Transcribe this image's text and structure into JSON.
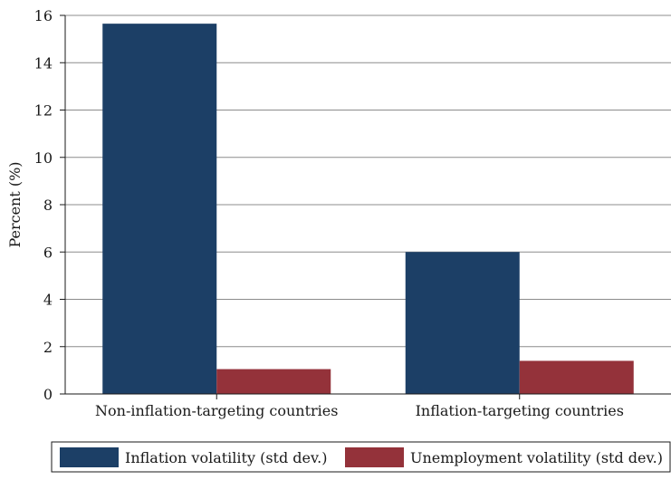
{
  "chart_data": {
    "type": "bar",
    "title": "",
    "xlabel": "",
    "ylabel": "Percent (%)",
    "ylim": [
      0,
      16
    ],
    "yticks": [
      0,
      2,
      4,
      6,
      8,
      10,
      12,
      14,
      16
    ],
    "grid": true,
    "legend_position": "bottom",
    "categories": [
      "Non-inflation-targeting countries",
      "Inflation-targeting countries"
    ],
    "series": [
      {
        "name": "Inflation volatility (std dev.)",
        "color": "#1c3f66",
        "values": [
          15.65,
          6.0
        ]
      },
      {
        "name": "Unemployment volatility (std dev.)",
        "color": "#94323a",
        "values": [
          1.05,
          1.4
        ]
      }
    ]
  }
}
